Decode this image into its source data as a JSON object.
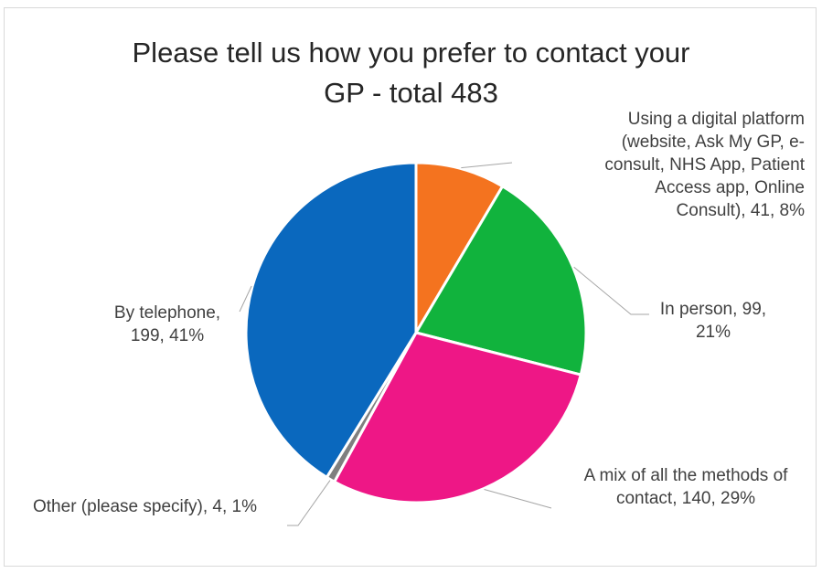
{
  "chart_data": {
    "type": "pie",
    "title_lines": [
      "Please tell us how you prefer to contact your",
      "GP - total 483"
    ],
    "total": 483,
    "slices": [
      {
        "name": "Using a digital platform (website, Ask My GP, e-consult, NHS App, Patient Access app, Online Consult)",
        "value": 41,
        "percent": "8%",
        "color": "#f4731f",
        "label_lines": [
          "Using a digital platform",
          "(website, Ask My GP, e-",
          "consult, NHS App, Patient",
          "Access app, Online",
          "Consult), 41, 8%"
        ]
      },
      {
        "name": "In person",
        "value": 99,
        "percent": "21%",
        "color": "#11b33d",
        "label_lines": [
          "In person, 99,",
          "21%"
        ]
      },
      {
        "name": "A mix of all the methods of contact",
        "value": 140,
        "percent": "29%",
        "color": "#ee1786",
        "label_lines": [
          "A mix of all the methods of",
          "contact, 140, 29%"
        ]
      },
      {
        "name": "Other (please specify)",
        "value": 4,
        "percent": "1%",
        "color": "#7f7f7f",
        "label_lines": [
          "Other (please specify), 4, 1%"
        ]
      },
      {
        "name": "By telephone",
        "value": 199,
        "percent": "41%",
        "color": "#0a68be",
        "label_lines": [
          "By telephone,",
          "199, 41%"
        ]
      }
    ],
    "legend": "none",
    "labels": "outside with leader lines"
  }
}
